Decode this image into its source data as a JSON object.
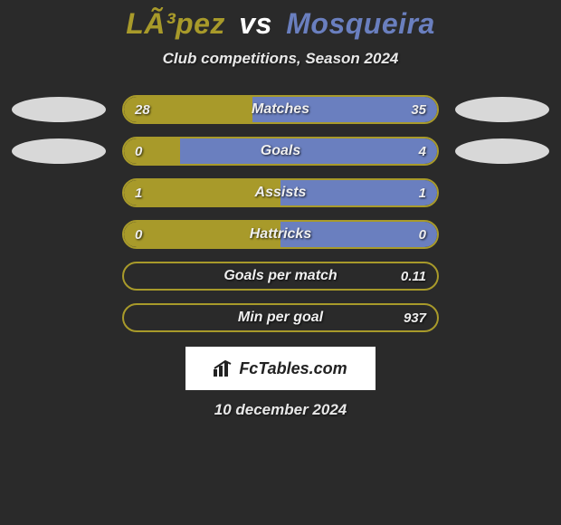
{
  "title": {
    "player1": "LÃ³pez",
    "vs": "vs",
    "player2": "Mosqueira",
    "player1_color": "#a89a2a",
    "player2_color": "#6a7fbf"
  },
  "subtitle": "Club competitions, Season 2024",
  "colors": {
    "left": "#a89a2a",
    "right": "#6a7fbf",
    "ellipse_left": "#d8d8d8",
    "ellipse_right": "#d8d8d8",
    "bg": "#2a2a2a",
    "text": "#eeeeee"
  },
  "rows": [
    {
      "label": "Matches",
      "left_val": "28",
      "right_val": "35",
      "left_pct": 41,
      "right_pct": 59,
      "show_ellipses": true
    },
    {
      "label": "Goals",
      "left_val": "0",
      "right_val": "4",
      "left_pct": 18,
      "right_pct": 82,
      "show_ellipses": true
    },
    {
      "label": "Assists",
      "left_val": "1",
      "right_val": "1",
      "left_pct": 50,
      "right_pct": 50,
      "show_ellipses": false
    },
    {
      "label": "Hattricks",
      "left_val": "0",
      "right_val": "0",
      "left_pct": 50,
      "right_pct": 50,
      "show_ellipses": false
    },
    {
      "label": "Goals per match",
      "left_val": "",
      "right_val": "0.11",
      "left_pct": 0,
      "right_pct": 0,
      "show_ellipses": false
    },
    {
      "label": "Min per goal",
      "left_val": "",
      "right_val": "937",
      "left_pct": 0,
      "right_pct": 0,
      "show_ellipses": false
    }
  ],
  "footer": {
    "logo_text": "FcTables.com",
    "date": "10 december 2024"
  }
}
